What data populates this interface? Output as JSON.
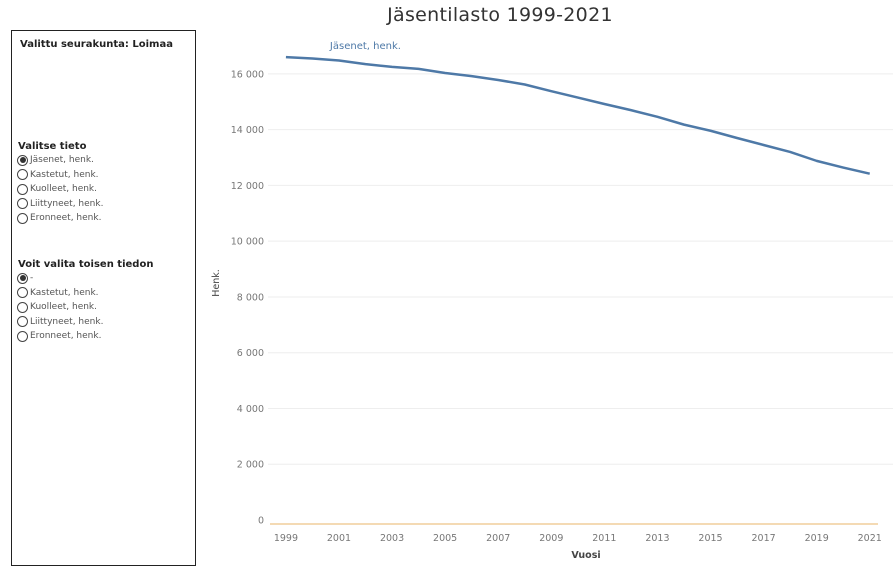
{
  "title": "Jäsentilasto 1999-2021",
  "selected_parish_label": "Valittu seurakunta: Loimaa",
  "primary": {
    "title": "Valitse tieto",
    "options": [
      {
        "label": "Jäsenet, henk.",
        "selected": true
      },
      {
        "label": "Kastetut, henk.",
        "selected": false
      },
      {
        "label": "Kuolleet, henk.",
        "selected": false
      },
      {
        "label": "Liittyneet, henk.",
        "selected": false
      },
      {
        "label": "Eronneet, henk.",
        "selected": false
      }
    ]
  },
  "secondary": {
    "title": "Voit valita toisen tiedon",
    "options": [
      {
        "label": "-",
        "selected": true
      },
      {
        "label": "Kastetut, henk.",
        "selected": false
      },
      {
        "label": "Kuolleet, henk.",
        "selected": false
      },
      {
        "label": "Liittyneet, henk.",
        "selected": false
      },
      {
        "label": "Eronneet, henk.",
        "selected": false
      }
    ]
  },
  "colors": {
    "series": "#4e79a7",
    "secondary_line": "#f1ce9b",
    "gridline": "#eeeeee"
  },
  "chart_data": {
    "type": "line",
    "title": "Jäsentilasto 1999-2021",
    "xlabel": "Vuosi",
    "ylabel": "Henk.",
    "ylim": [
      0,
      17000
    ],
    "xlim": [
      1998.4,
      2021.5
    ],
    "grid": true,
    "y_ticks": [
      0,
      2000,
      4000,
      6000,
      8000,
      10000,
      12000,
      14000,
      16000
    ],
    "y_tick_labels": [
      "0",
      "2 000",
      "4 000",
      "6 000",
      "8 000",
      "10 000",
      "12 000",
      "14 000",
      "16 000"
    ],
    "x_ticks": [
      1999,
      2001,
      2003,
      2005,
      2007,
      2009,
      2011,
      2013,
      2015,
      2017,
      2019,
      2021
    ],
    "x_tick_labels": [
      "1999",
      "2001",
      "2003",
      "2005",
      "2007",
      "2009",
      "2011",
      "2013",
      "2015",
      "2017",
      "2019",
      "2021"
    ],
    "series": [
      {
        "name": "Jäsenet, henk.",
        "color": "#4e79a7",
        "x": [
          1999,
          2000,
          2001,
          2002,
          2003,
          2004,
          2005,
          2006,
          2007,
          2008,
          2009,
          2010,
          2011,
          2012,
          2013,
          2014,
          2015,
          2016,
          2017,
          2018,
          2019,
          2020,
          2021
        ],
        "values": [
          16600,
          16550,
          16480,
          16350,
          16250,
          16180,
          16030,
          15920,
          15780,
          15620,
          15380,
          15150,
          14920,
          14700,
          14460,
          14180,
          13960,
          13700,
          13450,
          13200,
          12880,
          12640,
          12420
        ]
      }
    ]
  }
}
